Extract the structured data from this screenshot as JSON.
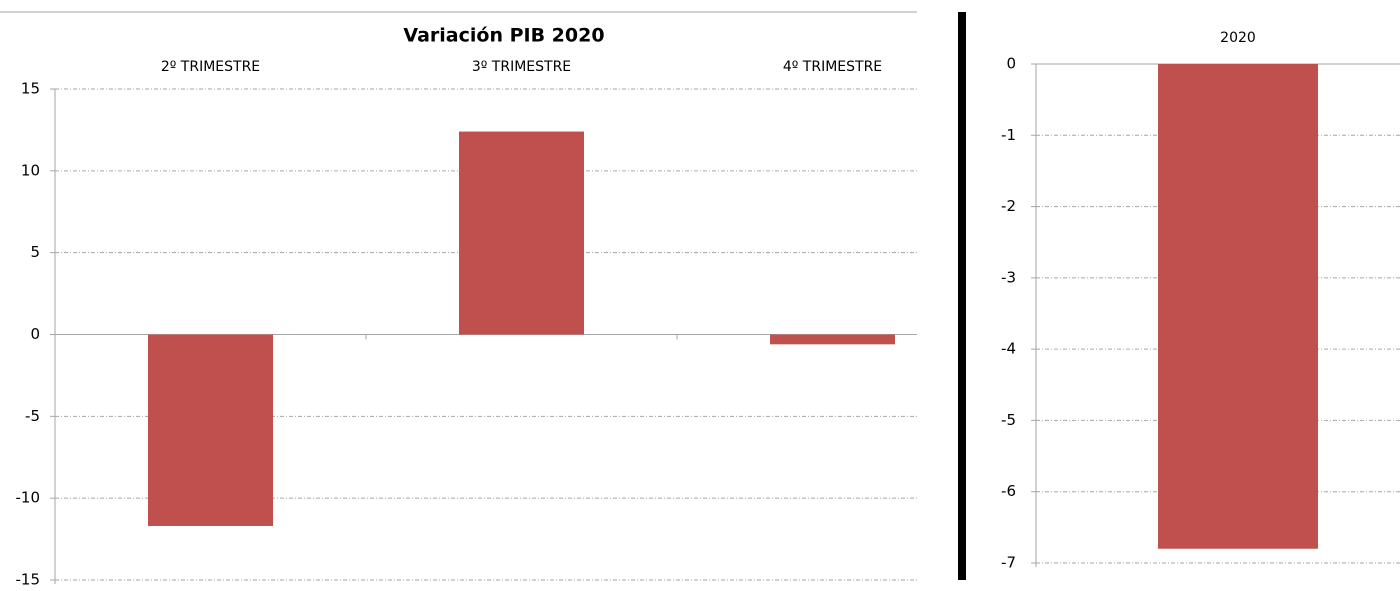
{
  "chart_data": [
    {
      "type": "bar",
      "title": "Variación PIB 2020",
      "categories": [
        "2º TRIMESTRE",
        "3º TRIMESTRE",
        "4º TRIMESTRE"
      ],
      "values": [
        -11.7,
        12.4,
        -0.6
      ],
      "color": "#c0504d",
      "ylim": [
        -15,
        15
      ],
      "yticks": [
        -15,
        -10,
        -5,
        0,
        5,
        10,
        15
      ],
      "grid": true
    },
    {
      "type": "bar",
      "categories": [
        "2020"
      ],
      "values": [
        -6.8
      ],
      "color": "#c0504d",
      "ylim": [
        -7,
        0
      ],
      "yticks": [
        -7,
        -6,
        -5,
        -4,
        -3,
        -2,
        -1,
        0
      ],
      "grid": true
    }
  ]
}
